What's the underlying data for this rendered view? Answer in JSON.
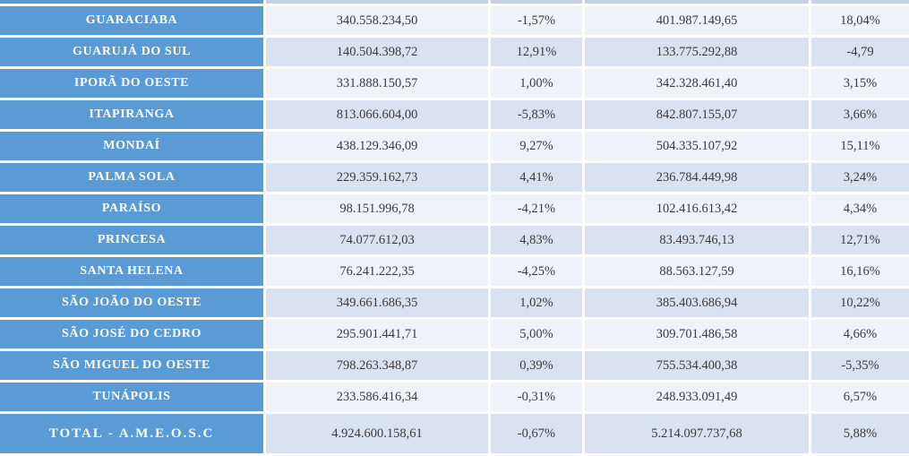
{
  "colors": {
    "header_blue": "#5b9bd5",
    "row_dark": "#d9e2f0",
    "row_light": "#eef2f9",
    "partial_row_tint": "#c6d2e4",
    "border_white": "#ffffff",
    "number_text": "#3b3b3b"
  },
  "table": {
    "columns": [
      "municipality",
      "value_period_1",
      "variation_period_1",
      "value_period_2",
      "variation_period_2"
    ],
    "rows": [
      {
        "name": "GUARACIABA",
        "value1": "340.558.234,50",
        "pct1": "-1,57%",
        "value2": "401.987.149,65",
        "pct2": "18,04%"
      },
      {
        "name": "GUARUJÁ DO SUL",
        "value1": "140.504.398,72",
        "pct1": "12,91%",
        "value2": "133.775.292,88",
        "pct2": "-4,79"
      },
      {
        "name": "IPORÃ DO OESTE",
        "value1": "331.888.150,57",
        "pct1": "1,00%",
        "value2": "342.328.461,40",
        "pct2": "3,15%"
      },
      {
        "name": "ITAPIRANGA",
        "value1": "813.066.604,00",
        "pct1": "-5,83%",
        "value2": "842.807.155,07",
        "pct2": "3,66%"
      },
      {
        "name": "MONDAÍ",
        "value1": "438.129.346,09",
        "pct1": "9,27%",
        "value2": "504.335.107,92",
        "pct2": "15,11%"
      },
      {
        "name": "PALMA SOLA",
        "value1": "229.359.162,73",
        "pct1": "4,41%",
        "value2": "236.784.449,98",
        "pct2": "3,24%"
      },
      {
        "name": "PARAÍSO",
        "value1": "98.151.996,78",
        "pct1": "-4,21%",
        "value2": "102.416.613,42",
        "pct2": "4,34%"
      },
      {
        "name": "PRINCESA",
        "value1": "74.077.612,03",
        "pct1": "4,83%",
        "value2": "83.493.746,13",
        "pct2": "12,71%"
      },
      {
        "name": "SANTA HELENA",
        "value1": "76.241.222,35",
        "pct1": "-4,25%",
        "value2": "88.563.127,59",
        "pct2": "16,16%"
      },
      {
        "name": "SÃO JOÃO DO OESTE",
        "value1": "349.661.686,35",
        "pct1": "1,02%",
        "value2": "385.403.686,94",
        "pct2": "10,22%"
      },
      {
        "name": "SÃO JOSÉ DO CEDRO",
        "value1": "295.901.441,71",
        "pct1": "5,00%",
        "value2": "309.701.486,58",
        "pct2": "4,66%"
      },
      {
        "name": "SÃO MIGUEL DO OESTE",
        "value1": "798.263.348,87",
        "pct1": "0,39%",
        "value2": "755.534.400,38",
        "pct2": "-5,35%"
      },
      {
        "name": "TUNÁPOLIS",
        "value1": "233.586.416,34",
        "pct1": "-0,31%",
        "value2": "248.933.091,49",
        "pct2": "6,57%"
      },
      {
        "name": "TOTAL - A.M.E.O.S.C",
        "value1": "4.924.600.158,61",
        "pct1": "-0,67%",
        "value2": "5.214.097.737,68",
        "pct2": "5,88%"
      }
    ]
  }
}
